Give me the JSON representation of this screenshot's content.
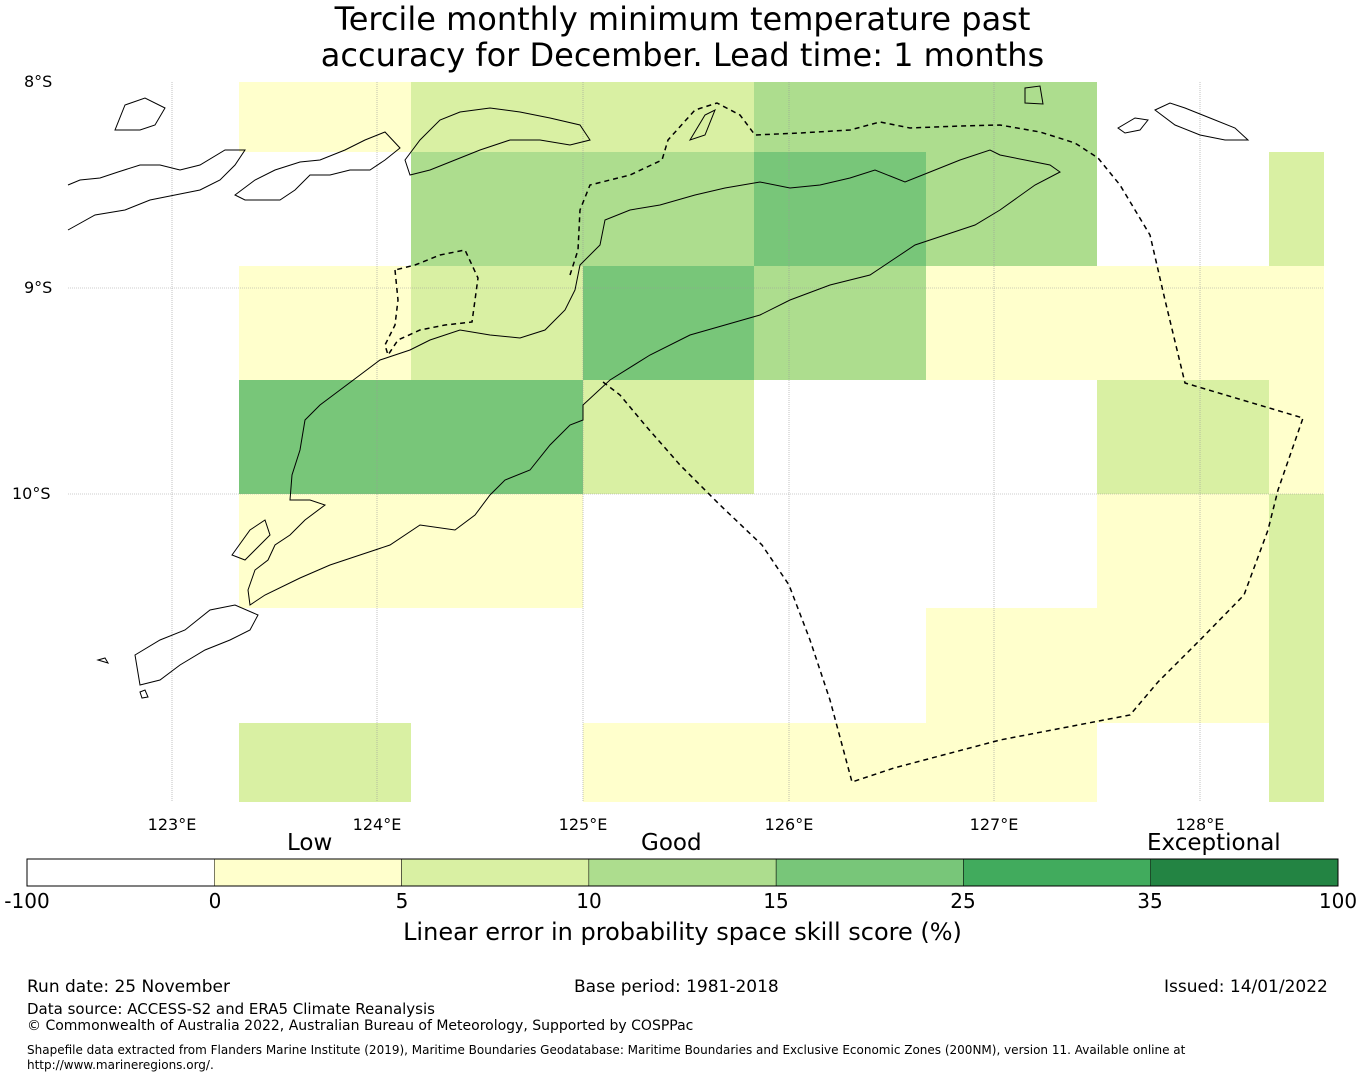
{
  "title": {
    "line1": "Tercile monthly minimum temperature past",
    "line2": "accuracy for December. Lead time: 1 months"
  },
  "map": {
    "lat_labels": [
      "8°S",
      "9°S",
      "10°S"
    ],
    "lon_labels": [
      "123°E",
      "124°E",
      "125°E",
      "126°E",
      "127°E",
      "128°E"
    ],
    "skill_grid_class_index": [
      [
        -1,
        1,
        2,
        2,
        3,
        3,
        0,
        0
      ],
      [
        0,
        0,
        3,
        3,
        4,
        3,
        0,
        2
      ],
      [
        0,
        1,
        2,
        4,
        3,
        1,
        1,
        1
      ],
      [
        0,
        4,
        4,
        2,
        0,
        0,
        2,
        1
      ],
      [
        0,
        1,
        1,
        0,
        0,
        0,
        1,
        2
      ],
      [
        0,
        0,
        0,
        0,
        0,
        1,
        1,
        2
      ],
      [
        0,
        2,
        0,
        1,
        1,
        1,
        0,
        2
      ]
    ]
  },
  "colorbar": {
    "categories": [
      "Low",
      "Good",
      "Exceptional"
    ],
    "ticks": [
      "-100",
      "0",
      "5",
      "10",
      "15",
      "25",
      "35",
      "100"
    ],
    "colors": [
      "#ffffff",
      "#ffffcc",
      "#d9f0a3",
      "#addd8e",
      "#78c679",
      "#41ab5d",
      "#238443"
    ],
    "label": "Linear error in probability space skill score (%)"
  },
  "footer": {
    "run_date": "Run date: 25 November",
    "base_period": "Base period: 1981-2018",
    "issued": "Issued: 14/01/2022",
    "data_source": "Data source: ACCESS-S2 and ERA5 Climate Reanalysis",
    "copyright": "© Commonwealth of Australia 2022, Australian Bureau of Meteorology, Supported by COSPPac",
    "shapefile_note": "Shapefile data extracted from Flanders Marine Institute (2019), Maritime Boundaries Geodatabase: Maritime Boundaries and Exclusive Economic Zones (200NM), version 11. Available online at http://www.marineregions.org/."
  }
}
